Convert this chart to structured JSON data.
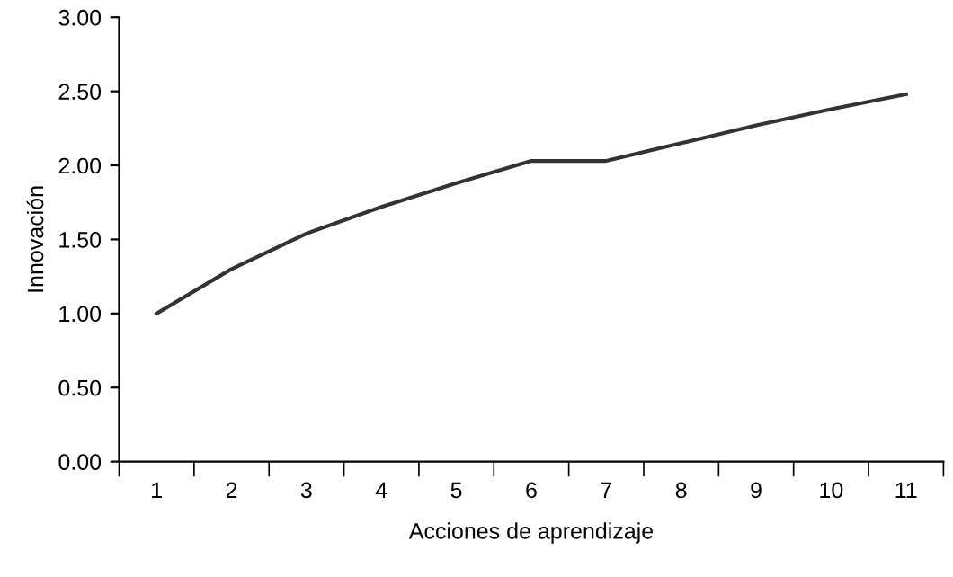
{
  "chart_data": {
    "type": "line",
    "xlabel": "Acciones de aprendizaje",
    "ylabel": "Innovación",
    "categories": [
      "1",
      "2",
      "3",
      "4",
      "5",
      "6",
      "7",
      "8",
      "9",
      "10",
      "11"
    ],
    "series": [
      {
        "color": "#333333",
        "values": [
          1.0,
          1.3,
          1.54,
          1.72,
          1.88,
          2.03,
          2.03,
          2.15,
          2.27,
          2.38,
          2.48
        ]
      }
    ],
    "ylim": [
      0,
      3
    ],
    "yticks": [
      {
        "value": 0,
        "label": "0.00"
      },
      {
        "value": 0.5,
        "label": "0.50"
      },
      {
        "value": 1,
        "label": "1.00"
      },
      {
        "value": 1.5,
        "label": "1.50"
      },
      {
        "value": 2,
        "label": "2.00"
      },
      {
        "value": 2.5,
        "label": "2.50"
      },
      {
        "value": 3,
        "label": "3.00"
      }
    ],
    "grid": false,
    "legend": false,
    "marker": "none",
    "line_style": "solid"
  }
}
